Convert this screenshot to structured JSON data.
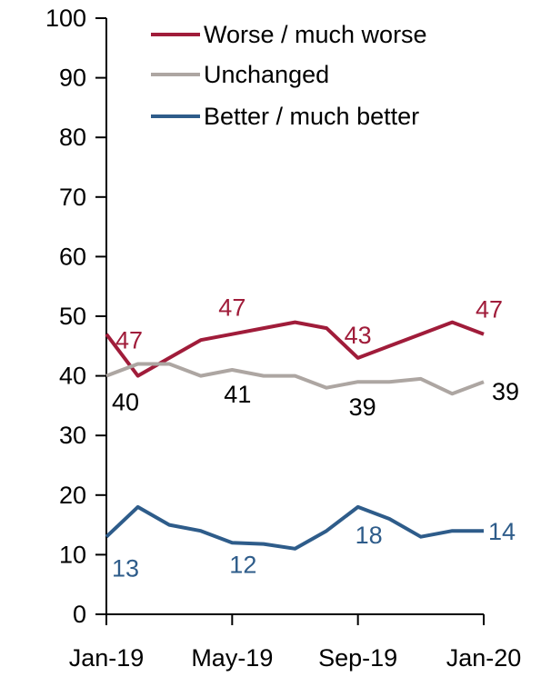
{
  "chart_data": {
    "type": "line",
    "title": "",
    "xlabel": "",
    "ylabel": "",
    "ylim": [
      0,
      100
    ],
    "yticks": [
      0,
      10,
      20,
      30,
      40,
      50,
      60,
      70,
      80,
      90,
      100
    ],
    "x_tick_labels": [
      "Jan-19",
      "May-19",
      "Sep-19",
      "Jan-20"
    ],
    "x": [
      "Jan-19",
      "Feb-19",
      "Mar-19",
      "Apr-19",
      "May-19",
      "Jun-19",
      "Jul-19",
      "Aug-19",
      "Sep-19",
      "Oct-19",
      "Nov-19",
      "Dec-19",
      "Jan-20"
    ],
    "grid": false,
    "legend": "top-right",
    "series": [
      {
        "name": "Worse / much worse",
        "color": "#A01C3A",
        "values": [
          47,
          40,
          43,
          46,
          47,
          48,
          49,
          48,
          43,
          45,
          47,
          49,
          47
        ],
        "labels": [
          {
            "index": 0,
            "text": "47"
          },
          {
            "index": 4,
            "text": "47"
          },
          {
            "index": 8,
            "text": "43"
          },
          {
            "index": 12,
            "text": "47"
          }
        ]
      },
      {
        "name": "Unchanged",
        "color": "#ADA6A2",
        "values": [
          40,
          42,
          42,
          40,
          41,
          40,
          40,
          38,
          39,
          39,
          39.5,
          37,
          39
        ],
        "labels": [
          {
            "index": 0,
            "text": "40"
          },
          {
            "index": 4,
            "text": "41"
          },
          {
            "index": 8,
            "text": "39"
          },
          {
            "index": 12,
            "text": "39"
          }
        ]
      },
      {
        "name": "Better / much better",
        "color": "#2E5C8A",
        "values": [
          13,
          18,
          15,
          14,
          12,
          11.8,
          11,
          14,
          18,
          16,
          13,
          14,
          14
        ],
        "labels": [
          {
            "index": 0,
            "text": "13"
          },
          {
            "index": 4,
            "text": "12"
          },
          {
            "index": 8,
            "text": "18"
          },
          {
            "index": 12,
            "text": "14"
          }
        ]
      }
    ]
  }
}
